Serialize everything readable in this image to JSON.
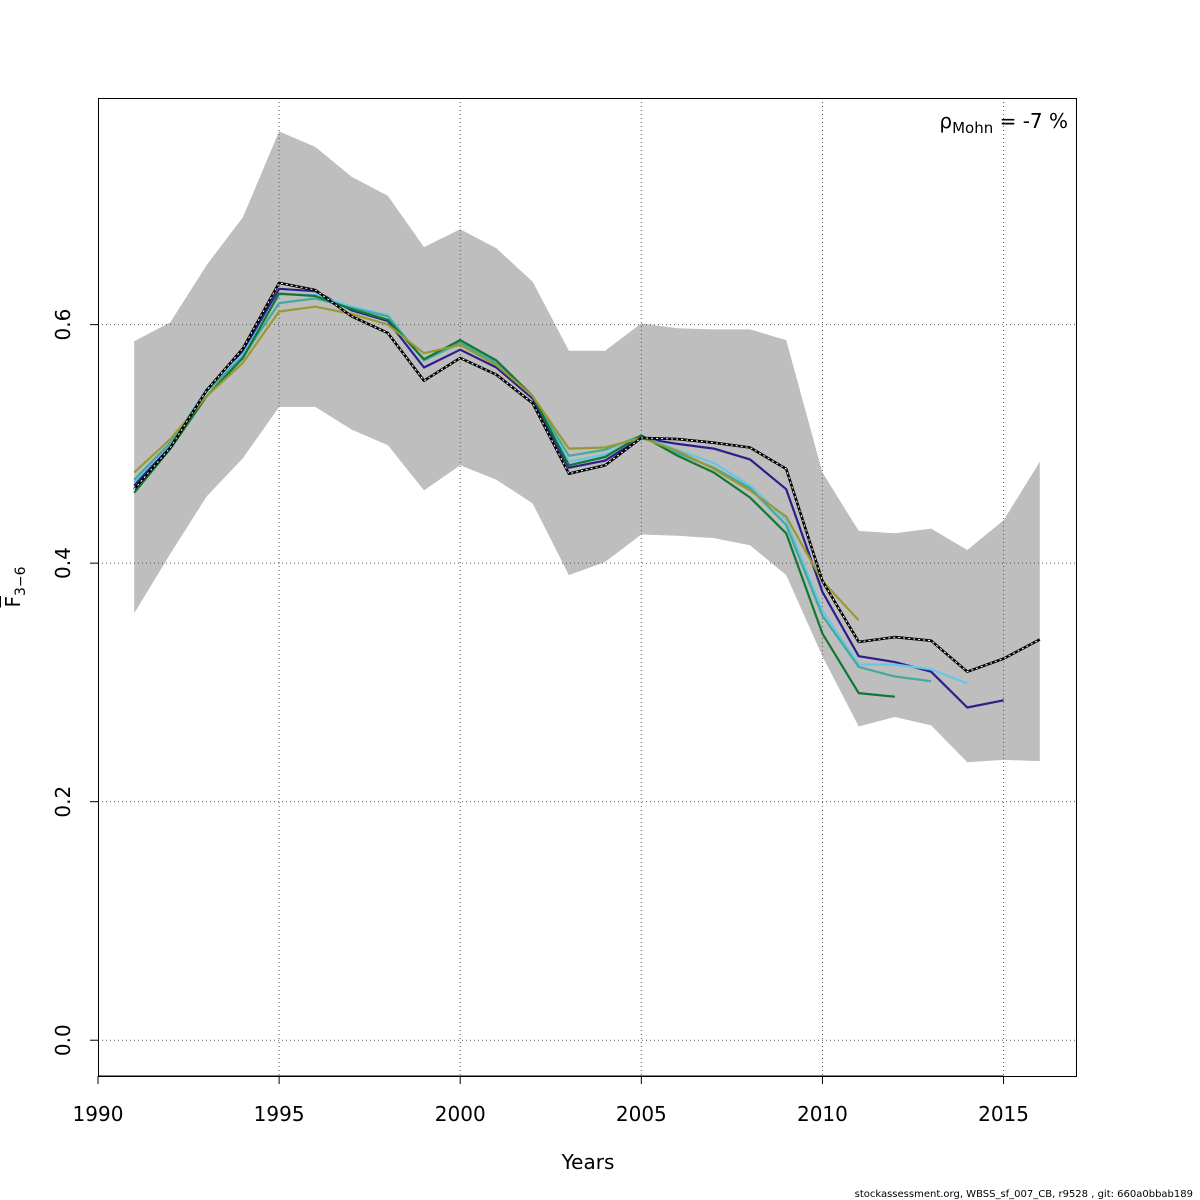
{
  "chart_data": {
    "type": "line",
    "title": "",
    "xlabel": "Years",
    "ylabel": {
      "base": "F",
      "subscript": "3−6"
    },
    "xlim": [
      1990,
      2017
    ],
    "ylim": [
      -0.03,
      0.79
    ],
    "xticks": [
      1990,
      1995,
      2000,
      2005,
      2010,
      2015
    ],
    "yticks": [
      0.0,
      0.2,
      0.4,
      0.6
    ],
    "ytick_labels": [
      "0.0",
      "0.2",
      "0.4",
      "0.6"
    ],
    "grid": true,
    "annotation": {
      "rho": "ρ",
      "subscript": "Mohn",
      "value_text": " = -7 %",
      "position": "top-right"
    },
    "confidence_band": {
      "x": [
        1991,
        1992,
        1993,
        1994,
        1995,
        1996,
        1997,
        1998,
        1999,
        2000,
        2001,
        2002,
        2003,
        2004,
        2005,
        2006,
        2007,
        2008,
        2009,
        2010,
        2011,
        2012,
        2013,
        2014,
        2015,
        2016
      ],
      "lower": [
        0.358,
        0.408,
        0.456,
        0.488,
        0.531,
        0.531,
        0.512,
        0.499,
        0.461,
        0.482,
        0.47,
        0.45,
        0.39,
        0.401,
        0.424,
        0.423,
        0.421,
        0.415,
        0.39,
        0.322,
        0.263,
        0.271,
        0.264,
        0.233,
        0.235,
        0.234
      ],
      "upper": [
        0.586,
        0.602,
        0.65,
        0.69,
        0.762,
        0.749,
        0.724,
        0.708,
        0.665,
        0.68,
        0.664,
        0.636,
        0.578,
        0.578,
        0.601,
        0.597,
        0.596,
        0.596,
        0.587,
        0.476,
        0.427,
        0.425,
        0.429,
        0.411,
        0.436,
        0.485
      ],
      "color": "#bebebe"
    },
    "series": [
      {
        "color": "#000000",
        "dashed": true,
        "x": [
          1991,
          1992,
          1993,
          1994,
          1995,
          1996,
          1997,
          1998,
          1999,
          2000,
          2001,
          2002,
          2003,
          2004,
          2005,
          2006,
          2007,
          2008,
          2009,
          2010,
          2011,
          2012,
          2013,
          2014,
          2015,
          2016
        ],
        "values": [
          0.462,
          0.497,
          0.545,
          0.58,
          0.635,
          0.629,
          0.607,
          0.593,
          0.553,
          0.572,
          0.558,
          0.534,
          0.475,
          0.482,
          0.505,
          0.504,
          0.501,
          0.497,
          0.479,
          0.385,
          0.334,
          0.338,
          0.335,
          0.309,
          0.32,
          0.336
        ]
      },
      {
        "color": "#2a1f8c",
        "dashed": false,
        "x": [
          1991,
          1992,
          1993,
          1994,
          1995,
          1996,
          1997,
          1998,
          1999,
          2000,
          2001,
          2002,
          2003,
          2004,
          2005,
          2006,
          2007,
          2008,
          2009,
          2010,
          2011,
          2012,
          2013,
          2014,
          2015
        ],
        "values": [
          0.465,
          0.499,
          0.545,
          0.578,
          0.63,
          0.628,
          0.612,
          0.603,
          0.564,
          0.579,
          0.564,
          0.538,
          0.48,
          0.486,
          0.505,
          0.5,
          0.496,
          0.487,
          0.462,
          0.376,
          0.322,
          0.317,
          0.309,
          0.279,
          0.285
        ]
      },
      {
        "color": "#66c5e8",
        "dashed": false,
        "x": [
          1991,
          1992,
          1993,
          1994,
          1995,
          1996,
          1997,
          1998,
          1999,
          2000,
          2001,
          2002,
          2003,
          2004,
          2005,
          2006,
          2007,
          2008,
          2009,
          2010,
          2011,
          2012,
          2013,
          2014
        ],
        "values": [
          0.468,
          0.5,
          0.546,
          0.575,
          0.625,
          0.625,
          0.615,
          0.608,
          0.57,
          0.584,
          0.568,
          0.54,
          0.485,
          0.491,
          0.506,
          0.495,
          0.484,
          0.465,
          0.436,
          0.36,
          0.315,
          0.315,
          0.311,
          0.299
        ]
      },
      {
        "color": "#44aa99",
        "dashed": false,
        "x": [
          1991,
          1992,
          1993,
          1994,
          1995,
          1996,
          1997,
          1998,
          1999,
          2000,
          2001,
          2002,
          2003,
          2004,
          2005,
          2006,
          2007,
          2008,
          2009,
          2010,
          2011,
          2012,
          2013
        ],
        "values": [
          0.47,
          0.501,
          0.544,
          0.573,
          0.618,
          0.622,
          0.614,
          0.607,
          0.57,
          0.585,
          0.568,
          0.54,
          0.49,
          0.495,
          0.507,
          0.492,
          0.48,
          0.463,
          0.432,
          0.356,
          0.313,
          0.305,
          0.301
        ]
      },
      {
        "color": "#117733",
        "dashed": false,
        "x": [
          1991,
          1992,
          1993,
          1994,
          1995,
          1996,
          1997,
          1998,
          1999,
          2000,
          2001,
          2002,
          2003,
          2004,
          2005,
          2006,
          2007,
          2008,
          2009,
          2010,
          2011,
          2012
        ],
        "values": [
          0.459,
          0.496,
          0.54,
          0.572,
          0.626,
          0.624,
          0.613,
          0.604,
          0.571,
          0.587,
          0.57,
          0.54,
          0.482,
          0.489,
          0.507,
          0.49,
          0.476,
          0.455,
          0.425,
          0.341,
          0.291,
          0.288
        ]
      },
      {
        "color": "#999933",
        "dashed": false,
        "x": [
          1991,
          1992,
          1993,
          1994,
          1995,
          1996,
          1997,
          1998,
          1999,
          2000,
          2001,
          2002,
          2003,
          2004,
          2005,
          2006,
          2007,
          2008,
          2009,
          2010,
          2011
        ],
        "values": [
          0.476,
          0.504,
          0.54,
          0.568,
          0.611,
          0.615,
          0.609,
          0.6,
          0.576,
          0.583,
          0.566,
          0.54,
          0.496,
          0.497,
          0.505,
          0.494,
          0.479,
          0.461,
          0.439,
          0.385,
          0.352
        ]
      }
    ]
  },
  "footer_text": "stockassessment.org, WBSS_sf_007_CB, r9528 , git: 660a0bbab189"
}
